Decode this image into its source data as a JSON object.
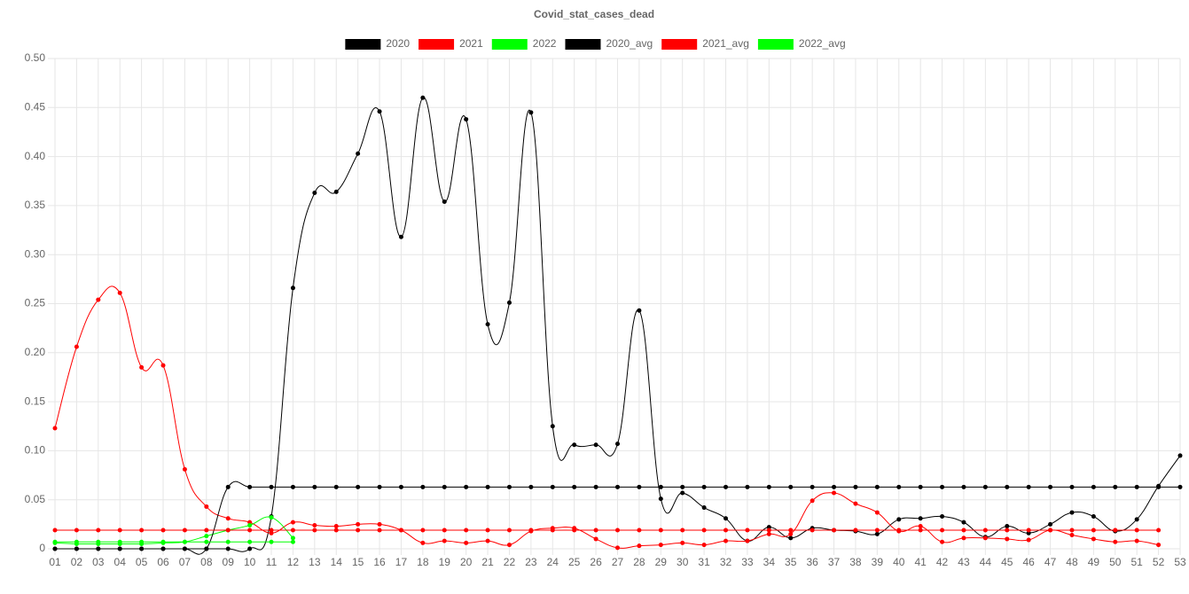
{
  "chart_data": {
    "type": "line",
    "title": "Covid_stat_cases_dead",
    "categories": [
      "01",
      "02",
      "03",
      "04",
      "05",
      "06",
      "07",
      "08",
      "09",
      "10",
      "11",
      "12",
      "13",
      "14",
      "15",
      "16",
      "17",
      "18",
      "19",
      "20",
      "21",
      "22",
      "23",
      "24",
      "25",
      "26",
      "27",
      "28",
      "29",
      "30",
      "31",
      "32",
      "33",
      "34",
      "35",
      "36",
      "37",
      "38",
      "39",
      "40",
      "41",
      "42",
      "43",
      "44",
      "45",
      "46",
      "47",
      "48",
      "49",
      "50",
      "51",
      "52",
      "53"
    ],
    "ylim": [
      0,
      0.5
    ],
    "yticks": [
      0,
      0.05,
      {
        "value": 0.1,
        "label": "0.10"
      },
      0.15,
      {
        "value": 0.2,
        "label": "0.20"
      },
      0.25,
      {
        "value": 0.3,
        "label": "0.30"
      },
      0.35,
      {
        "value": 0.4,
        "label": "0.40"
      },
      0.45,
      {
        "value": 0.5,
        "label": "0.50"
      }
    ],
    "grid": true,
    "series": [
      {
        "name": "2020",
        "color": "#000000",
        "values": [
          0,
          0,
          0,
          0,
          0,
          0,
          0,
          0,
          0,
          0,
          0.033,
          0.266,
          0.363,
          0.364,
          0.403,
          0.446,
          0.318,
          0.46,
          0.354,
          0.438,
          0.229,
          0.251,
          0.445,
          0.125,
          0.106,
          0.106,
          0.107,
          0.243,
          0.051,
          0.057,
          0.042,
          0.031,
          0.008,
          0.022,
          0.011,
          0.021,
          0.019,
          0.018,
          0.015,
          0.03,
          0.031,
          0.033,
          0.027,
          0.012,
          0.023,
          0.016,
          0.025,
          0.037,
          0.033,
          0.018,
          0.03,
          0.064,
          0.095
        ]
      },
      {
        "name": "2021",
        "color": "#ff0000",
        "values": [
          0.123,
          0.206,
          0.254,
          0.261,
          0.185,
          0.187,
          0.081,
          0.043,
          0.031,
          0.027,
          0.016,
          0.027,
          0.024,
          0.023,
          0.025,
          0.025,
          0.019,
          0.006,
          0.008,
          0.006,
          0.008,
          0.004,
          0.018,
          0.021,
          0.021,
          0.01,
          0.001,
          0.003,
          0.004,
          0.006,
          0.004,
          0.008,
          0.008,
          0.015,
          0.015,
          0.049,
          0.057,
          0.046,
          0.037,
          0.018,
          0.023,
          0.007,
          0.011,
          0.011,
          0.01,
          0.009,
          0.019,
          0.014,
          0.01,
          0.007,
          0.008,
          0.004,
          null
        ]
      },
      {
        "name": "2022",
        "color": "#00ff00",
        "values": [
          0.006,
          0.005,
          0.005,
          0.005,
          0.005,
          0.006,
          0.007,
          0.013,
          0.019,
          0.024,
          0.032,
          0.011,
          null,
          null,
          null,
          null,
          null,
          null,
          null,
          null,
          null,
          null,
          null,
          null,
          null,
          null,
          null,
          null,
          null,
          null,
          null,
          null,
          null,
          null,
          null,
          null,
          null,
          null,
          null,
          null,
          null,
          null,
          null,
          null,
          null,
          null,
          null,
          null,
          null,
          null,
          null,
          null,
          null
        ]
      },
      {
        "name": "2020_avg",
        "color": "#000000",
        "values": [
          0,
          0,
          0,
          0,
          0,
          0,
          0,
          0,
          0.063,
          0.063,
          0.063,
          0.063,
          0.063,
          0.063,
          0.063,
          0.063,
          0.063,
          0.063,
          0.063,
          0.063,
          0.063,
          0.063,
          0.063,
          0.063,
          0.063,
          0.063,
          0.063,
          0.063,
          0.063,
          0.063,
          0.063,
          0.063,
          0.063,
          0.063,
          0.063,
          0.063,
          0.063,
          0.063,
          0.063,
          0.063,
          0.063,
          0.063,
          0.063,
          0.063,
          0.063,
          0.063,
          0.063,
          0.063,
          0.063,
          0.063,
          0.063,
          0.063,
          0.063
        ]
      },
      {
        "name": "2021_avg",
        "color": "#ff0000",
        "values": [
          0.019,
          0.019,
          0.019,
          0.019,
          0.019,
          0.019,
          0.019,
          0.019,
          0.019,
          0.019,
          0.019,
          0.019,
          0.019,
          0.019,
          0.019,
          0.019,
          0.019,
          0.019,
          0.019,
          0.019,
          0.019,
          0.019,
          0.019,
          0.019,
          0.019,
          0.019,
          0.019,
          0.019,
          0.019,
          0.019,
          0.019,
          0.019,
          0.019,
          0.019,
          0.019,
          0.019,
          0.019,
          0.019,
          0.019,
          0.019,
          0.019,
          0.019,
          0.019,
          0.019,
          0.019,
          0.019,
          0.019,
          0.019,
          0.019,
          0.019,
          0.019,
          0.019,
          null
        ]
      },
      {
        "name": "2022_avg",
        "color": "#00ff00",
        "values": [
          0.007,
          0.007,
          0.007,
          0.007,
          0.007,
          0.007,
          0.007,
          0.007,
          0.007,
          0.007,
          0.007,
          0.007,
          null,
          null,
          null,
          null,
          null,
          null,
          null,
          null,
          null,
          null,
          null,
          null,
          null,
          null,
          null,
          null,
          null,
          null,
          null,
          null,
          null,
          null,
          null,
          null,
          null,
          null,
          null,
          null,
          null,
          null,
          null,
          null,
          null,
          null,
          null,
          null,
          null,
          null,
          null,
          null,
          null
        ]
      }
    ]
  }
}
